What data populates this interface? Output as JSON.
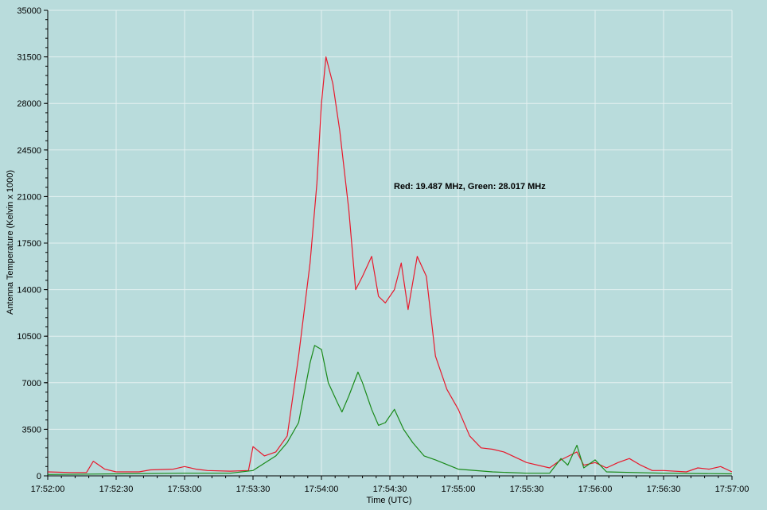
{
  "chart_data": {
    "type": "line",
    "xlabel": "Time (UTC)",
    "ylabel": "Antenna Temperature (Kelvin x 1000)",
    "annotation": "Red: 19.487 MHz, Green: 28.017 MHz",
    "ylim": [
      0,
      35000
    ],
    "xlim": [
      "17:52:00",
      "17:57:00"
    ],
    "grid": true,
    "x_ticks": [
      "17:52:00",
      "17:52:30",
      "17:53:00",
      "17:53:30",
      "17:54:00",
      "17:54:30",
      "17:55:00",
      "17:55:30",
      "17:56:00",
      "17:56:30",
      "17:57:00"
    ],
    "y_ticks": [
      0,
      3500,
      7000,
      10500,
      14000,
      17500,
      21000,
      24500,
      28000,
      31500,
      35000
    ],
    "colors": {
      "background": "#b9dcdc",
      "grid": "#e4f0f0",
      "red": "#e8192c",
      "green": "#1a8a1a"
    },
    "series": [
      {
        "color": "red",
        "points": [
          [
            "17:52:00",
            300
          ],
          [
            "17:52:10",
            250
          ],
          [
            "17:52:17",
            250
          ],
          [
            "17:52:20",
            1100
          ],
          [
            "17:52:25",
            500
          ],
          [
            "17:52:30",
            300
          ],
          [
            "17:52:40",
            300
          ],
          [
            "17:52:45",
            450
          ],
          [
            "17:52:55",
            500
          ],
          [
            "17:53:00",
            700
          ],
          [
            "17:53:05",
            500
          ],
          [
            "17:53:10",
            400
          ],
          [
            "17:53:20",
            350
          ],
          [
            "17:53:28",
            400
          ],
          [
            "17:53:30",
            2200
          ],
          [
            "17:53:35",
            1500
          ],
          [
            "17:53:40",
            1800
          ],
          [
            "17:53:45",
            3000
          ],
          [
            "17:53:50",
            9000
          ],
          [
            "17:53:55",
            16000
          ],
          [
            "17:53:58",
            22000
          ],
          [
            "17:54:00",
            28000
          ],
          [
            "17:54:02",
            31500
          ],
          [
            "17:54:05",
            29500
          ],
          [
            "17:54:08",
            26000
          ],
          [
            "17:54:12",
            20000
          ],
          [
            "17:54:15",
            14000
          ],
          [
            "17:54:18",
            15000
          ],
          [
            "17:54:22",
            16500
          ],
          [
            "17:54:25",
            13500
          ],
          [
            "17:54:28",
            13000
          ],
          [
            "17:54:32",
            14000
          ],
          [
            "17:54:35",
            16000
          ],
          [
            "17:54:38",
            12500
          ],
          [
            "17:54:42",
            16500
          ],
          [
            "17:54:46",
            15000
          ],
          [
            "17:54:50",
            9000
          ],
          [
            "17:54:55",
            6500
          ],
          [
            "17:55:00",
            5000
          ],
          [
            "17:55:05",
            3000
          ],
          [
            "17:55:10",
            2100
          ],
          [
            "17:55:15",
            2000
          ],
          [
            "17:55:20",
            1800
          ],
          [
            "17:55:30",
            1000
          ],
          [
            "17:55:40",
            600
          ],
          [
            "17:55:45",
            1200
          ],
          [
            "17:55:52",
            1800
          ],
          [
            "17:55:55",
            800
          ],
          [
            "17:56:00",
            1000
          ],
          [
            "17:56:05",
            600
          ],
          [
            "17:56:10",
            1000
          ],
          [
            "17:56:15",
            1300
          ],
          [
            "17:56:20",
            800
          ],
          [
            "17:56:25",
            400
          ],
          [
            "17:56:30",
            400
          ],
          [
            "17:56:40",
            300
          ],
          [
            "17:56:45",
            600
          ],
          [
            "17:56:50",
            500
          ],
          [
            "17:56:55",
            700
          ],
          [
            "17:57:00",
            300
          ]
        ]
      },
      {
        "color": "green",
        "points": [
          [
            "17:52:00",
            100
          ],
          [
            "17:52:30",
            150
          ],
          [
            "17:53:00",
            200
          ],
          [
            "17:53:20",
            200
          ],
          [
            "17:53:30",
            400
          ],
          [
            "17:53:40",
            1500
          ],
          [
            "17:53:45",
            2500
          ],
          [
            "17:53:50",
            4000
          ],
          [
            "17:53:55",
            8500
          ],
          [
            "17:53:57",
            9800
          ],
          [
            "17:54:00",
            9500
          ],
          [
            "17:54:03",
            7000
          ],
          [
            "17:54:07",
            5500
          ],
          [
            "17:54:09",
            4800
          ],
          [
            "17:54:12",
            6000
          ],
          [
            "17:54:16",
            7800
          ],
          [
            "17:54:18",
            7000
          ],
          [
            "17:54:22",
            5000
          ],
          [
            "17:54:25",
            3800
          ],
          [
            "17:54:28",
            4000
          ],
          [
            "17:54:32",
            5000
          ],
          [
            "17:54:36",
            3500
          ],
          [
            "17:54:40",
            2500
          ],
          [
            "17:54:45",
            1500
          ],
          [
            "17:54:50",
            1200
          ],
          [
            "17:55:00",
            500
          ],
          [
            "17:55:15",
            300
          ],
          [
            "17:55:30",
            200
          ],
          [
            "17:55:40",
            200
          ],
          [
            "17:55:45",
            1300
          ],
          [
            "17:55:48",
            800
          ],
          [
            "17:55:52",
            2300
          ],
          [
            "17:55:55",
            600
          ],
          [
            "17:56:00",
            1200
          ],
          [
            "17:56:05",
            300
          ],
          [
            "17:56:30",
            200
          ],
          [
            "17:57:00",
            150
          ]
        ]
      }
    ]
  }
}
